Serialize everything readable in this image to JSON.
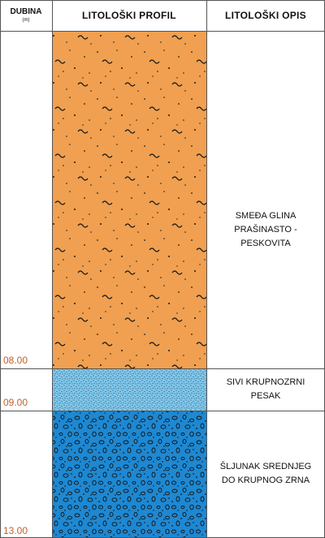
{
  "header": {
    "depth_label": "DUBINA",
    "depth_unit": "(m)",
    "profile_label": "LITOLOŠKI PROFIL",
    "description_label": "LITOLOŠKI OPIS"
  },
  "layers": [
    {
      "name": "clay",
      "bottom_depth_label": "08.00",
      "description_lines": [
        "SMEĐA GLINA",
        "PRAŠINASTO -",
        "PESKOVITA"
      ],
      "fill_color": "#f0a050",
      "pattern": "dots-and-tildes"
    },
    {
      "name": "sand",
      "bottom_depth_label": "09.00",
      "description_lines": [
        "SIVI KRUPNOZRNI",
        "PESAK"
      ],
      "fill_color": "#7ec8ee",
      "pattern": "fine-dots"
    },
    {
      "name": "gravel",
      "bottom_depth_label": "13.00",
      "description_lines": [
        "ŠLJUNAK SREDNJEG",
        "DO KRUPNOG ZRNA"
      ],
      "fill_color": "#1e88d2",
      "pattern": "pebbles"
    }
  ]
}
